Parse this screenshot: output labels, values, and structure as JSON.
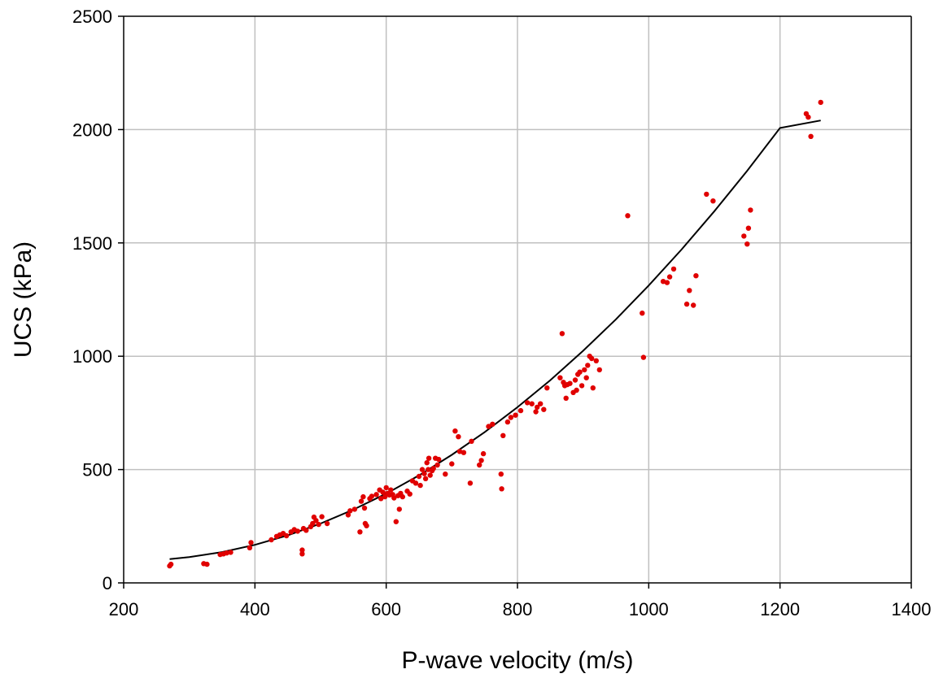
{
  "chart_data": {
    "type": "scatter",
    "title": "",
    "xlabel": "P-wave velocity (m/s)",
    "ylabel": "UCS (kPa)",
    "xlim": [
      200,
      1400
    ],
    "ylim": [
      0,
      2500
    ],
    "xticks": [
      200,
      400,
      600,
      800,
      1000,
      1200,
      1400
    ],
    "yticks": [
      0,
      500,
      1000,
      1500,
      2000,
      2500
    ],
    "xtick_labels": [
      "200",
      "400",
      "600",
      "800",
      "1000",
      "1200",
      "1400"
    ],
    "ytick_labels": [
      "0",
      "500",
      "1000",
      "1500",
      "2000",
      "2500"
    ],
    "grid": true,
    "legend": "none",
    "colors": {
      "points": "#e00000",
      "fit": "#000000",
      "grid": "#c0c0c0"
    },
    "series": [
      {
        "kind": "points",
        "points": [
          [
            270,
            75
          ],
          [
            272,
            82
          ],
          [
            322,
            85
          ],
          [
            327,
            82
          ],
          [
            347,
            125
          ],
          [
            352,
            128
          ],
          [
            357,
            132
          ],
          [
            363,
            135
          ],
          [
            392,
            155
          ],
          [
            394,
            178
          ],
          [
            425,
            190
          ],
          [
            433,
            205
          ],
          [
            438,
            212
          ],
          [
            443,
            218
          ],
          [
            448,
            208
          ],
          [
            455,
            225
          ],
          [
            460,
            235
          ],
          [
            465,
            228
          ],
          [
            472,
            145
          ],
          [
            472,
            128
          ],
          [
            474,
            240
          ],
          [
            478,
            232
          ],
          [
            485,
            248
          ],
          [
            488,
            262
          ],
          [
            490,
            290
          ],
          [
            493,
            275
          ],
          [
            497,
            258
          ],
          [
            502,
            292
          ],
          [
            510,
            262
          ],
          [
            542,
            300
          ],
          [
            545,
            318
          ],
          [
            552,
            325
          ],
          [
            560,
            225
          ],
          [
            562,
            360
          ],
          [
            565,
            380
          ],
          [
            567,
            330
          ],
          [
            568,
            262
          ],
          [
            570,
            252
          ],
          [
            575,
            372
          ],
          [
            578,
            382
          ],
          [
            585,
            390
          ],
          [
            590,
            410
          ],
          [
            592,
            372
          ],
          [
            595,
            400
          ],
          [
            598,
            380
          ],
          [
            600,
            420
          ],
          [
            602,
            395
          ],
          [
            605,
            388
          ],
          [
            607,
            410
          ],
          [
            610,
            390
          ],
          [
            612,
            375
          ],
          [
            615,
            270
          ],
          [
            618,
            385
          ],
          [
            620,
            325
          ],
          [
            622,
            395
          ],
          [
            625,
            380
          ],
          [
            632,
            405
          ],
          [
            636,
            392
          ],
          [
            640,
            450
          ],
          [
            645,
            440
          ],
          [
            650,
            470
          ],
          [
            652,
            430
          ],
          [
            655,
            500
          ],
          [
            658,
            482
          ],
          [
            660,
            460
          ],
          [
            662,
            530
          ],
          [
            664,
            500
          ],
          [
            665,
            550
          ],
          [
            667,
            475
          ],
          [
            670,
            495
          ],
          [
            672,
            505
          ],
          [
            675,
            550
          ],
          [
            678,
            520
          ],
          [
            680,
            545
          ],
          [
            690,
            480
          ],
          [
            700,
            525
          ],
          [
            705,
            670
          ],
          [
            710,
            645
          ],
          [
            712,
            580
          ],
          [
            718,
            575
          ],
          [
            728,
            440
          ],
          [
            730,
            625
          ],
          [
            742,
            520
          ],
          [
            745,
            540
          ],
          [
            748,
            570
          ],
          [
            756,
            690
          ],
          [
            762,
            700
          ],
          [
            775,
            480
          ],
          [
            776,
            415
          ],
          [
            778,
            650
          ],
          [
            785,
            710
          ],
          [
            790,
            730
          ],
          [
            797,
            740
          ],
          [
            805,
            760
          ],
          [
            815,
            795
          ],
          [
            822,
            790
          ],
          [
            828,
            755
          ],
          [
            830,
            775
          ],
          [
            835,
            790
          ],
          [
            840,
            765
          ],
          [
            845,
            860
          ],
          [
            865,
            905
          ],
          [
            868,
            1100
          ],
          [
            870,
            885
          ],
          [
            872,
            870
          ],
          [
            874,
            815
          ],
          [
            876,
            875
          ],
          [
            880,
            880
          ],
          [
            885,
            840
          ],
          [
            888,
            895
          ],
          [
            890,
            850
          ],
          [
            892,
            920
          ],
          [
            895,
            930
          ],
          [
            898,
            870
          ],
          [
            902,
            940
          ],
          [
            905,
            905
          ],
          [
            907,
            960
          ],
          [
            910,
            1000
          ],
          [
            913,
            990
          ],
          [
            915,
            860
          ],
          [
            920,
            980
          ],
          [
            925,
            940
          ],
          [
            968,
            1620
          ],
          [
            990,
            1190
          ],
          [
            992,
            995
          ],
          [
            1022,
            1330
          ],
          [
            1028,
            1325
          ],
          [
            1032,
            1350
          ],
          [
            1038,
            1385
          ],
          [
            1058,
            1230
          ],
          [
            1062,
            1290
          ],
          [
            1068,
            1225
          ],
          [
            1072,
            1355
          ],
          [
            1088,
            1715
          ],
          [
            1098,
            1685
          ],
          [
            1145,
            1530
          ],
          [
            1150,
            1495
          ],
          [
            1152,
            1565
          ],
          [
            1155,
            1645
          ],
          [
            1240,
            2070
          ],
          [
            1243,
            2055
          ],
          [
            1247,
            1970
          ],
          [
            1262,
            2120
          ]
        ]
      },
      {
        "kind": "curve",
        "points": [
          [
            270,
            105
          ],
          [
            300,
            114
          ],
          [
            350,
            136
          ],
          [
            400,
            168
          ],
          [
            450,
            210
          ],
          [
            500,
            262
          ],
          [
            550,
            323
          ],
          [
            600,
            394
          ],
          [
            650,
            474
          ],
          [
            700,
            565
          ],
          [
            750,
            665
          ],
          [
            800,
            775
          ],
          [
            850,
            894
          ],
          [
            900,
            1024
          ],
          [
            950,
            1163
          ],
          [
            1000,
            1312
          ],
          [
            1050,
            1471
          ],
          [
            1100,
            1640
          ],
          [
            1150,
            1818
          ],
          [
            1200,
            2007
          ],
          [
            1262,
            2040
          ]
        ]
      }
    ]
  }
}
